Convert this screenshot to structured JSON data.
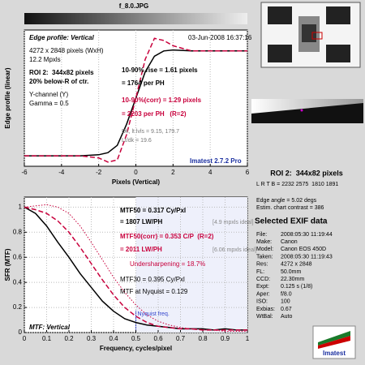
{
  "file_name": "f_8.0.JPG",
  "chart_data": [
    {
      "type": "line",
      "title": "Edge profile: Vertical",
      "xlabel": "Pixels (Vertical)",
      "ylabel": "Edge profile (linear)",
      "x": [
        -6,
        -5,
        -4,
        -3,
        -2,
        -1.5,
        -1,
        -0.5,
        0,
        0.5,
        1,
        1.5,
        2,
        3,
        4,
        5,
        6
      ],
      "series": [
        {
          "color": "#000000",
          "style": "solid",
          "values": [
            0,
            0,
            0,
            0,
            0.01,
            0.03,
            0.1,
            0.3,
            0.55,
            0.8,
            0.95,
            1.0,
            1.01,
            1.0,
            1.0,
            1.0,
            1.0
          ]
        },
        {
          "color": "#c8003c",
          "style": "dashed",
          "values": [
            0,
            0,
            0,
            0,
            -0.02,
            -0.06,
            -0.04,
            0.2,
            0.55,
            0.92,
            1.12,
            1.1,
            1.05,
            1.0,
            1.0,
            1.0,
            1.0
          ]
        }
      ],
      "xlim": [
        -6,
        6
      ],
      "ylim": [
        -0.1,
        1.2
      ],
      "xticks": [
        -6,
        -4,
        -2,
        0,
        2,
        4,
        6
      ],
      "grid": true,
      "annotations": [
        {
          "text": "4272 x 2848 pixels (WxH)"
        },
        {
          "text": "12.2 Mpxls"
        },
        {
          "text": "ROI 2:  344x82 pixels",
          "bold": true
        },
        {
          "text": "20% below-R of ctr.",
          "bold": true
        },
        {
          "text": "Y-channel (Y)"
        },
        {
          "text": "Gamma = 0.5"
        },
        {
          "text": "03-Jun-2008 16:37:16"
        },
        {
          "text": "10-90% rise = 1.61 pixels",
          "bold": true
        },
        {
          "text": "= 1764 per PH",
          "bold": true
        },
        {
          "text": "10-90%(corr) = 1.29 pixels",
          "bold": true,
          "color": "#c8003c"
        },
        {
          "text": "= 2203 per PH   (R=2)",
          "bold": true,
          "color": "#c8003c"
        },
        {
          "text": "Dk, lt lvls = 9.15, 179.7",
          "color": "#777777"
        },
        {
          "text": "Lt/dk = 19.6",
          "color": "#777777"
        },
        {
          "text": "Imatest 2.7.2 Pro",
          "bold": true,
          "color": "#1a2fa0"
        }
      ]
    },
    {
      "type": "line",
      "title": "MTF: Vertical",
      "xlabel": "Frequency, cycles/pixel",
      "ylabel": "SFR (MTF)",
      "x": [
        0,
        0.05,
        0.1,
        0.15,
        0.2,
        0.25,
        0.3,
        0.35,
        0.4,
        0.45,
        0.5,
        0.55,
        0.6,
        0.65,
        0.7,
        0.75,
        0.8,
        0.85,
        0.9,
        0.95,
        1
      ],
      "series": [
        {
          "color": "#000000",
          "style": "solid",
          "values": [
            1,
            0.95,
            0.85,
            0.72,
            0.6,
            0.47,
            0.36,
            0.25,
            0.17,
            0.11,
            0.08,
            0.06,
            0.05,
            0.04,
            0.03,
            0.03,
            0.03,
            0.02,
            0.03,
            0.02,
            0.02
          ]
        },
        {
          "color": "#c8003c",
          "style": "dashed",
          "values": [
            1,
            0.98,
            0.95,
            0.89,
            0.8,
            0.68,
            0.55,
            0.42,
            0.3,
            0.2,
            0.13,
            0.08,
            0.05,
            0.04,
            0.03,
            0.03,
            0.02,
            0.02,
            0.02,
            0.02,
            0.02
          ]
        },
        {
          "color": "#c8003c",
          "style": "dotted",
          "values": [
            1,
            1.01,
            1.02,
            1.0,
            0.95,
            0.85,
            0.72,
            0.58,
            0.44,
            0.32,
            0.22,
            0.14,
            0.09,
            0.06,
            0.04,
            0.03,
            0.02,
            0.02,
            0.01,
            0.01,
            0.01
          ]
        }
      ],
      "xlim": [
        0,
        1
      ],
      "ylim": [
        0,
        1.08
      ],
      "xticks": [
        0,
        0.1,
        0.2,
        0.3,
        0.4,
        0.5,
        0.6,
        0.7,
        0.8,
        0.9,
        1
      ],
      "yticks": [
        0,
        0.2,
        0.4,
        0.6,
        0.8,
        1
      ],
      "grid": true,
      "nyquist": 0.5,
      "nyquist_label": "Nyquist freq.",
      "annotations": [
        {
          "text": "MTF50 = 0.317 Cy/Pxl",
          "bold": true
        },
        {
          "text": "= 1807 LW/PH",
          "bold": true
        },
        {
          "text": "[4.9 mpxls ideal]",
          "color": "#888888"
        },
        {
          "text": "MTF50(corr) = 0.353 C/P  (R=2)",
          "bold": true,
          "color": "#c8003c"
        },
        {
          "text": "= 2011 LW/PH",
          "bold": true,
          "color": "#c8003c"
        },
        {
          "text": "[6.06 mpxls ideal]",
          "color": "#888888"
        },
        {
          "text": "Undersharpening = 18.7%",
          "color": "#c8003c"
        },
        {
          "text": "MTF30 = 0.395 Cy/Pxl"
        },
        {
          "text": "MTF at Nyquist = 0.129"
        }
      ]
    }
  ],
  "roi": {
    "title": "ROI 2:  344x82 pixels",
    "coords": "L R T B = 2232 2575  1810 1891",
    "edge_angle": "Edge angle = 5.02 degs",
    "contrast": "Estim. chart contrast = 386"
  },
  "exif": {
    "title": "Selected EXIF data",
    "rows": [
      [
        "File:",
        "2008:05:30 11:19:44"
      ],
      [
        "Make:",
        "Canon"
      ],
      [
        "Model:",
        "Canon EOS 450D"
      ],
      [
        "Taken:",
        "2008:05:30 11:19:43"
      ],
      [
        "Res:",
        "4272 x 2848"
      ],
      [
        "FL:",
        "50.0mm"
      ],
      [
        "CCD:",
        "22.30mm"
      ],
      [
        "Expt:",
        "0.125 s (1/8)"
      ],
      [
        "Aper:",
        "f/8.0"
      ],
      [
        "ISO:",
        "100"
      ],
      [
        "Exbias:",
        "0.67"
      ],
      [
        "WtBal:",
        "Auto"
      ]
    ]
  },
  "logo": "Imatest"
}
